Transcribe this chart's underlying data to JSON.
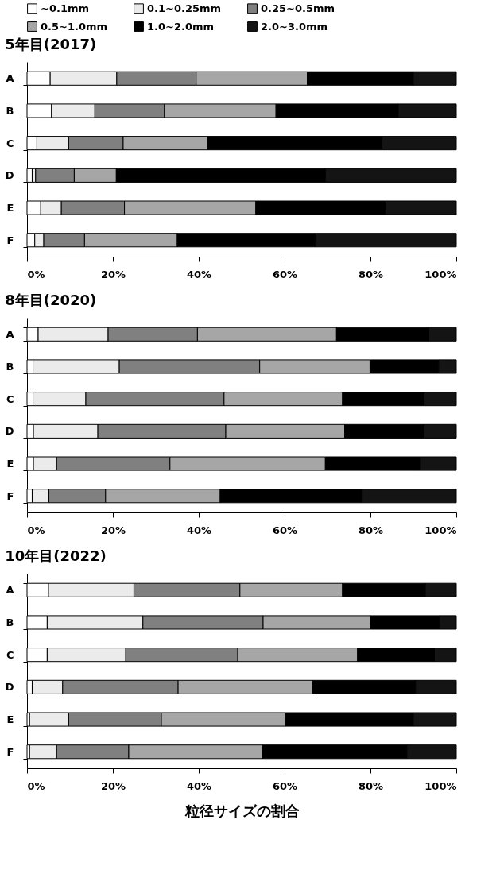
{
  "chart_data": [
    {
      "type": "bar",
      "title": "5年目(2017)",
      "orientation": "horizontal",
      "stacked": true,
      "legend": "top",
      "categories": [
        "A",
        "B",
        "C",
        "D",
        "E",
        "F"
      ],
      "xlim": [
        0,
        100
      ],
      "xticks": [
        {
          "value": 0,
          "label": "0%"
        },
        {
          "value": 20,
          "label": "20%"
        },
        {
          "value": 40,
          "label": "40%"
        },
        {
          "value": 60,
          "label": "60%"
        },
        {
          "value": 80,
          "label": "80%"
        },
        {
          "value": 100,
          "label": "100%"
        }
      ],
      "series": [
        {
          "name": "~0.1mm",
          "color": "#ffffff",
          "values": [
            5.4,
            5.7,
            2.3,
            1.2,
            3.2,
            1.8
          ]
        },
        {
          "name": "0.1~0.25mm",
          "color": "#ebebeb",
          "values": [
            15.5,
            10.1,
            7.4,
            0.8,
            4.8,
            2.1
          ]
        },
        {
          "name": "0.25~0.5mm",
          "color": "#808080",
          "values": [
            18.5,
            16.2,
            12.7,
            9.0,
            14.7,
            9.5
          ]
        },
        {
          "name": "0.5~1.0mm",
          "color": "#a6a6a6",
          "values": [
            25.9,
            26.0,
            19.6,
            9.8,
            30.6,
            21.6
          ]
        },
        {
          "name": "1.0~2.0mm",
          "color": "#000000",
          "values": [
            24.7,
            28.5,
            40.7,
            48.7,
            30.1,
            32.1
          ]
        },
        {
          "name": "2.0~3.0mm",
          "color": "#141414",
          "values": [
            10.0,
            13.5,
            17.3,
            30.5,
            16.6,
            32.9
          ]
        }
      ]
    },
    {
      "type": "bar",
      "title": "8年目(2020)",
      "orientation": "horizontal",
      "stacked": true,
      "categories": [
        "A",
        "B",
        "C",
        "D",
        "E",
        "F"
      ],
      "xlim": [
        0,
        100
      ],
      "xticks": [
        {
          "value": 0,
          "label": "0%"
        },
        {
          "value": 20,
          "label": "20%"
        },
        {
          "value": 40,
          "label": "40%"
        },
        {
          "value": 60,
          "label": "60%"
        },
        {
          "value": 80,
          "label": "80%"
        },
        {
          "value": 100,
          "label": "100%"
        }
      ],
      "series": [
        {
          "name": "~0.1mm",
          "color": "#ffffff",
          "values": [
            2.6,
            1.4,
            1.4,
            1.5,
            1.5,
            1.2
          ]
        },
        {
          "name": "0.1~0.25mm",
          "color": "#ebebeb",
          "values": [
            16.3,
            20.1,
            12.3,
            15.0,
            5.4,
            3.9
          ]
        },
        {
          "name": "0.25~0.5mm",
          "color": "#808080",
          "values": [
            20.8,
            32.7,
            32.2,
            29.8,
            26.4,
            13.2
          ]
        },
        {
          "name": "0.5~1.0mm",
          "color": "#a6a6a6",
          "values": [
            32.4,
            25.7,
            27.6,
            27.7,
            36.2,
            26.7
          ]
        },
        {
          "name": "1.0~2.0mm",
          "color": "#000000",
          "values": [
            21.5,
            16.0,
            19.0,
            18.5,
            22.0,
            33.1
          ]
        },
        {
          "name": "2.0~3.0mm",
          "color": "#141414",
          "values": [
            6.4,
            4.1,
            7.5,
            7.5,
            8.5,
            21.9
          ]
        }
      ]
    },
    {
      "type": "bar",
      "title": "10年目(2022)",
      "xlabel": "粒径サイズの割合",
      "orientation": "horizontal",
      "stacked": true,
      "categories": [
        "A",
        "B",
        "C",
        "D",
        "E",
        "F"
      ],
      "xlim": [
        0,
        100
      ],
      "xticks": [
        {
          "value": 0,
          "label": "0%"
        },
        {
          "value": 20,
          "label": "20%"
        },
        {
          "value": 40,
          "label": "40%"
        },
        {
          "value": 60,
          "label": "60%"
        },
        {
          "value": 80,
          "label": "80%"
        },
        {
          "value": 100,
          "label": "100%"
        }
      ],
      "series": [
        {
          "name": "~0.1mm",
          "color": "#ffffff",
          "values": [
            5.0,
            4.7,
            4.7,
            1.2,
            0.6,
            0.6
          ]
        },
        {
          "name": "0.1~0.25mm",
          "color": "#ebebeb",
          "values": [
            19.9,
            22.3,
            18.3,
            7.1,
            9.1,
            6.3
          ]
        },
        {
          "name": "0.25~0.5mm",
          "color": "#808080",
          "values": [
            24.7,
            28.0,
            26.1,
            26.9,
            21.6,
            16.8
          ]
        },
        {
          "name": "0.5~1.0mm",
          "color": "#a6a6a6",
          "values": [
            23.9,
            25.1,
            27.9,
            31.4,
            28.9,
            31.2
          ]
        },
        {
          "name": "1.0~2.0mm",
          "color": "#000000",
          "values": [
            19.3,
            16.0,
            17.9,
            23.9,
            29.8,
            33.6
          ]
        },
        {
          "name": "2.0~3.0mm",
          "color": "#141414",
          "values": [
            7.2,
            3.9,
            5.1,
            9.5,
            10.0,
            11.5
          ]
        }
      ]
    }
  ]
}
